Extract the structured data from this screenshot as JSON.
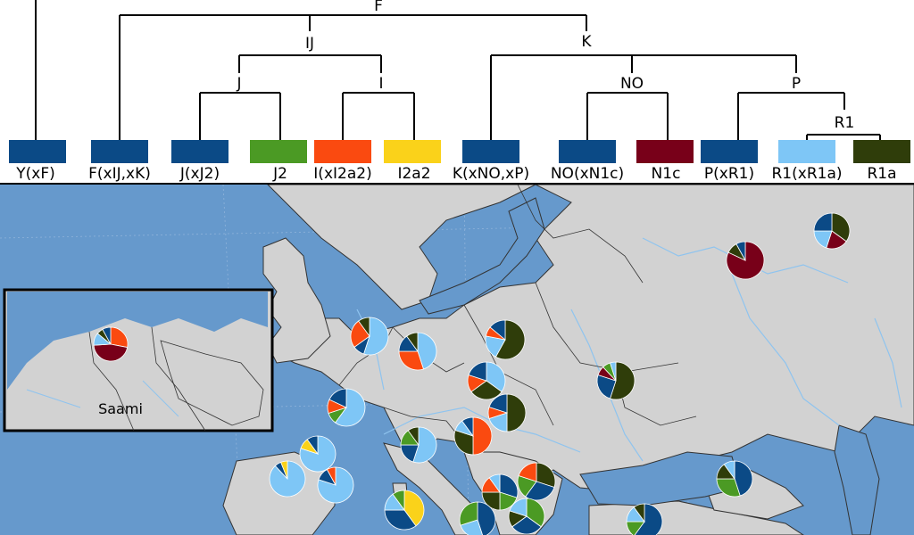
{
  "colors": {
    "blue": "#0b4a86",
    "green": "#4b9a24",
    "orange": "#fa4a10",
    "yellow": "#fad21a",
    "maroon": "#780019",
    "light_blue": "#7ec6f6",
    "dark_olive": "#2f3d0a",
    "sea": "#6699cc",
    "land": "#d2d2d2"
  },
  "tree": {
    "node_labels": {
      "F": "F",
      "IJ": "IJ",
      "K": "K",
      "J": "J",
      "I": "I",
      "NO": "NO",
      "P": "P",
      "R1": "R1"
    }
  },
  "legend": [
    {
      "label": "Y(xF)",
      "color": "blue"
    },
    {
      "label": "F(xIJ,xK)",
      "color": "blue"
    },
    {
      "label": "J(xJ2)",
      "color": "blue"
    },
    {
      "label": "J2",
      "color": "green"
    },
    {
      "label": "I(xI2a2)",
      "color": "orange"
    },
    {
      "label": "I2a2",
      "color": "yellow"
    },
    {
      "label": "K(xNO,xP)",
      "color": "blue"
    },
    {
      "label": "NO(xN1c)",
      "color": "blue"
    },
    {
      "label": "N1c",
      "color": "maroon"
    },
    {
      "label": "P(xR1)",
      "color": "blue"
    },
    {
      "label": "R1(xR1a)",
      "color": "light_blue"
    },
    {
      "label": "R1a",
      "color": "dark_olive"
    }
  ],
  "inset": {
    "label": "Saami"
  },
  "pies": [
    {
      "id": "saami",
      "slices": [
        {
          "c": "orange",
          "v": 0.28
        },
        {
          "c": "maroon",
          "v": 0.46
        },
        {
          "c": "light_blue",
          "v": 0.12
        },
        {
          "c": "dark_olive",
          "v": 0.06
        },
        {
          "c": "blue",
          "v": 0.08
        }
      ]
    },
    {
      "id": "volga-east",
      "slices": [
        {
          "c": "dark_olive",
          "v": 0.35
        },
        {
          "c": "maroon",
          "v": 0.2
        },
        {
          "c": "light_blue",
          "v": 0.2
        },
        {
          "c": "blue",
          "v": 0.25
        }
      ]
    },
    {
      "id": "russia-central",
      "slices": [
        {
          "c": "maroon",
          "v": 0.82
        },
        {
          "c": "dark_olive",
          "v": 0.1
        },
        {
          "c": "blue",
          "v": 0.08
        }
      ]
    },
    {
      "id": "netherlands",
      "slices": [
        {
          "c": "light_blue",
          "v": 0.55
        },
        {
          "c": "blue",
          "v": 0.1
        },
        {
          "c": "orange",
          "v": 0.25
        },
        {
          "c": "dark_olive",
          "v": 0.1
        }
      ]
    },
    {
      "id": "germany",
      "slices": [
        {
          "c": "light_blue",
          "v": 0.45
        },
        {
          "c": "orange",
          "v": 0.3
        },
        {
          "c": "blue",
          "v": 0.15
        },
        {
          "c": "dark_olive",
          "v": 0.1
        }
      ]
    },
    {
      "id": "poland",
      "slices": [
        {
          "c": "dark_olive",
          "v": 0.58
        },
        {
          "c": "light_blue",
          "v": 0.2
        },
        {
          "c": "orange",
          "v": 0.08
        },
        {
          "c": "blue",
          "v": 0.14
        }
      ]
    },
    {
      "id": "czechia",
      "slices": [
        {
          "c": "light_blue",
          "v": 0.35
        },
        {
          "c": "dark_olive",
          "v": 0.3
        },
        {
          "c": "orange",
          "v": 0.15
        },
        {
          "c": "blue",
          "v": 0.2
        }
      ]
    },
    {
      "id": "ukraine",
      "slices": [
        {
          "c": "dark_olive",
          "v": 0.55
        },
        {
          "c": "blue",
          "v": 0.25
        },
        {
          "c": "maroon",
          "v": 0.08
        },
        {
          "c": "green",
          "v": 0.07
        },
        {
          "c": "light_blue",
          "v": 0.05
        }
      ]
    },
    {
      "id": "hungary",
      "slices": [
        {
          "c": "dark_olive",
          "v": 0.5
        },
        {
          "c": "light_blue",
          "v": 0.2
        },
        {
          "c": "orange",
          "v": 0.1
        },
        {
          "c": "blue",
          "v": 0.2
        }
      ]
    },
    {
      "id": "france-north",
      "slices": [
        {
          "c": "light_blue",
          "v": 0.6
        },
        {
          "c": "green",
          "v": 0.1
        },
        {
          "c": "orange",
          "v": 0.12
        },
        {
          "c": "blue",
          "v": 0.18
        }
      ]
    },
    {
      "id": "croatia",
      "slices": [
        {
          "c": "orange",
          "v": 0.5
        },
        {
          "c": "dark_olive",
          "v": 0.3
        },
        {
          "c": "light_blue",
          "v": 0.1
        },
        {
          "c": "blue",
          "v": 0.1
        }
      ]
    },
    {
      "id": "italy-north",
      "slices": [
        {
          "c": "light_blue",
          "v": 0.55
        },
        {
          "c": "blue",
          "v": 0.2
        },
        {
          "c": "green",
          "v": 0.15
        },
        {
          "c": "dark_olive",
          "v": 0.1
        }
      ]
    },
    {
      "id": "france-south",
      "slices": [
        {
          "c": "light_blue",
          "v": 0.8
        },
        {
          "c": "yellow",
          "v": 0.1
        },
        {
          "c": "blue",
          "v": 0.1
        }
      ]
    },
    {
      "id": "basque",
      "slices": [
        {
          "c": "light_blue",
          "v": 0.88
        },
        {
          "c": "blue",
          "v": 0.06
        },
        {
          "c": "yellow",
          "v": 0.06
        }
      ]
    },
    {
      "id": "catalonia",
      "slices": [
        {
          "c": "light_blue",
          "v": 0.8
        },
        {
          "c": "blue",
          "v": 0.12
        },
        {
          "c": "orange",
          "v": 0.08
        }
      ]
    },
    {
      "id": "serbia",
      "slices": [
        {
          "c": "blue",
          "v": 0.3
        },
        {
          "c": "green",
          "v": 0.2
        },
        {
          "c": "dark_olive",
          "v": 0.25
        },
        {
          "c": "orange",
          "v": 0.15
        },
        {
          "c": "light_blue",
          "v": 0.1
        }
      ]
    },
    {
      "id": "bulgaria",
      "slices": [
        {
          "c": "dark_olive",
          "v": 0.3
        },
        {
          "c": "blue",
          "v": 0.3
        },
        {
          "c": "green",
          "v": 0.2
        },
        {
          "c": "orange",
          "v": 0.2
        }
      ]
    },
    {
      "id": "sardinia",
      "slices": [
        {
          "c": "yellow",
          "v": 0.4
        },
        {
          "c": "blue",
          "v": 0.35
        },
        {
          "c": "light_blue",
          "v": 0.15
        },
        {
          "c": "green",
          "v": 0.1
        }
      ]
    },
    {
      "id": "greece-west",
      "slices": [
        {
          "c": "blue",
          "v": 0.45
        },
        {
          "c": "light_blue",
          "v": 0.25
        },
        {
          "c": "green",
          "v": 0.3
        }
      ]
    },
    {
      "id": "greece-east",
      "slices": [
        {
          "c": "green",
          "v": 0.35
        },
        {
          "c": "blue",
          "v": 0.3
        },
        {
          "c": "dark_olive",
          "v": 0.15
        },
        {
          "c": "light_blue",
          "v": 0.2
        }
      ]
    },
    {
      "id": "caucasus",
      "slices": [
        {
          "c": "blue",
          "v": 0.45
        },
        {
          "c": "green",
          "v": 0.3
        },
        {
          "c": "dark_olive",
          "v": 0.15
        },
        {
          "c": "light_blue",
          "v": 0.1
        }
      ]
    },
    {
      "id": "anatolia",
      "slices": [
        {
          "c": "blue",
          "v": 0.6
        },
        {
          "c": "green",
          "v": 0.15
        },
        {
          "c": "light_blue",
          "v": 0.15
        },
        {
          "c": "dark_olive",
          "v": 0.1
        }
      ]
    }
  ]
}
